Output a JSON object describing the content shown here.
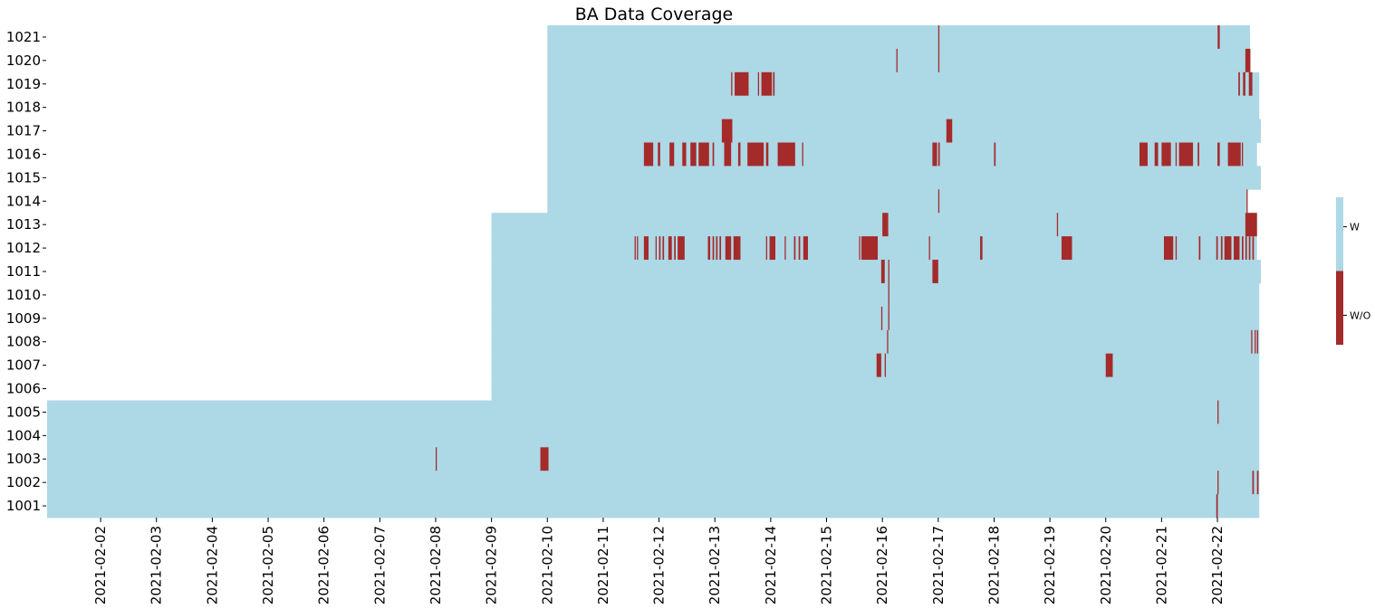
{
  "chart_data": {
    "type": "heatmap",
    "title": "BA Data Coverage",
    "colors": {
      "with": "#add8e6",
      "without": "#a52a2a",
      "background": "#ffffff"
    },
    "rows": [
      "1021",
      "1020",
      "1019",
      "1018",
      "1017",
      "1016",
      "1015",
      "1014",
      "1013",
      "1012",
      "1011",
      "1010",
      "1009",
      "1008",
      "1007",
      "1006",
      "1005",
      "1004",
      "1003",
      "1002",
      "1001"
    ],
    "x_ticks": [
      "2021-02-02",
      "2021-02-03",
      "2021-02-04",
      "2021-02-05",
      "2021-02-06",
      "2021-02-07",
      "2021-02-08",
      "2021-02-09",
      "2021-02-10",
      "2021-02-11",
      "2021-02-12",
      "2021-02-13",
      "2021-02-14",
      "2021-02-15",
      "2021-02-16",
      "2021-02-17",
      "2021-02-18",
      "2021-02-19",
      "2021-02-20",
      "2021-02-21",
      "2021-02-22"
    ],
    "x_range": [
      "2021-02-01T01:00",
      "2021-02-22T18:40"
    ],
    "series": [
      {
        "row": "1021",
        "start": "2021-02-10T00:00",
        "end": "2021-02-22T14:00",
        "gaps": [
          [
            "2021-02-17T00:00",
            "2021-02-17T00:30"
          ],
          [
            "2021-02-22T00:05",
            "2021-02-22T01:00"
          ]
        ]
      },
      {
        "row": "1020",
        "start": "2021-02-10T00:00",
        "end": "2021-02-22T14:10",
        "gaps": [
          [
            "2021-02-16T06:00",
            "2021-02-16T06:30"
          ],
          [
            "2021-02-17T00:00",
            "2021-02-17T00:30"
          ],
          [
            "2021-02-22T12:00",
            "2021-02-22T14:10"
          ]
        ]
      },
      {
        "row": "1019",
        "start": "2021-02-10T00:00",
        "end": "2021-02-22T18:00",
        "gaps": [
          [
            "2021-02-13T07:00",
            "2021-02-13T07:30"
          ],
          [
            "2021-02-13T08:30",
            "2021-02-13T14:30"
          ],
          [
            "2021-02-13T18:30",
            "2021-02-13T19:00"
          ],
          [
            "2021-02-13T20:00",
            "2021-02-14T00:30"
          ],
          [
            "2021-02-14T01:00",
            "2021-02-14T01:40"
          ],
          [
            "2021-02-22T09:00",
            "2021-02-22T09:40"
          ],
          [
            "2021-02-22T11:00",
            "2021-02-22T12:00"
          ],
          [
            "2021-02-22T13:30",
            "2021-02-22T15:00"
          ]
        ]
      },
      {
        "row": "1018",
        "start": "2021-02-10T00:00",
        "end": "2021-02-22T18:00",
        "gaps": []
      },
      {
        "row": "1017",
        "start": "2021-02-10T00:00",
        "end": "2021-02-22T18:40",
        "gaps": [
          [
            "2021-02-13T03:00",
            "2021-02-13T07:30"
          ],
          [
            "2021-02-17T03:30",
            "2021-02-17T06:00"
          ]
        ]
      },
      {
        "row": "1016",
        "start": "2021-02-10T00:00",
        "end": "2021-02-22T17:00",
        "gaps": [
          [
            "2021-02-11T17:30",
            "2021-02-11T21:30"
          ],
          [
            "2021-02-11T23:30",
            "2021-02-12T00:30"
          ],
          [
            "2021-02-12T04:30",
            "2021-02-12T06:30"
          ],
          [
            "2021-02-12T10:00",
            "2021-02-12T11:40"
          ],
          [
            "2021-02-12T13:30",
            "2021-02-12T16:00"
          ],
          [
            "2021-02-12T17:00",
            "2021-02-12T21:30"
          ],
          [
            "2021-02-12T23:00",
            "2021-02-12T23:40"
          ],
          [
            "2021-02-13T04:00",
            "2021-02-13T07:00"
          ],
          [
            "2021-02-13T10:00",
            "2021-02-13T11:00"
          ],
          [
            "2021-02-13T14:00",
            "2021-02-13T21:00"
          ],
          [
            "2021-02-13T22:00",
            "2021-02-13T23:00"
          ],
          [
            "2021-02-14T03:00",
            "2021-02-14T10:30"
          ],
          [
            "2021-02-14T13:30",
            "2021-02-14T14:00"
          ],
          [
            "2021-02-16T21:30",
            "2021-02-16T23:30"
          ],
          [
            "2021-02-17T00:00",
            "2021-02-17T00:40"
          ],
          [
            "2021-02-18T00:00",
            "2021-02-18T00:40"
          ],
          [
            "2021-02-20T14:30",
            "2021-02-20T18:00"
          ],
          [
            "2021-02-20T21:00",
            "2021-02-20T22:30"
          ],
          [
            "2021-02-21T00:00",
            "2021-02-21T04:00"
          ],
          [
            "2021-02-21T06:00",
            "2021-02-21T06:30"
          ],
          [
            "2021-02-21T07:30",
            "2021-02-21T13:30"
          ],
          [
            "2021-02-21T15:30",
            "2021-02-21T16:10"
          ],
          [
            "2021-02-22T00:00",
            "2021-02-22T01:00"
          ],
          [
            "2021-02-22T04:30",
            "2021-02-22T10:00"
          ],
          [
            "2021-02-22T10:30",
            "2021-02-22T11:00"
          ]
        ]
      },
      {
        "row": "1015",
        "start": "2021-02-10T00:00",
        "end": "2021-02-22T18:40",
        "gaps": []
      },
      {
        "row": "1014",
        "start": "2021-02-10T00:00",
        "end": "2021-02-22T12:30",
        "gaps": [
          [
            "2021-02-17T00:00",
            "2021-02-17T00:30"
          ],
          [
            "2021-02-22T12:30",
            "2021-02-22T13:00"
          ]
        ]
      },
      {
        "row": "1013",
        "start": "2021-02-09T00:00",
        "end": "2021-02-22T17:00",
        "gaps": [
          [
            "2021-02-16T00:00",
            "2021-02-16T02:30"
          ],
          [
            "2021-02-19T03:00",
            "2021-02-19T03:30"
          ],
          [
            "2021-02-22T12:00",
            "2021-02-22T17:00"
          ]
        ]
      },
      {
        "row": "1012",
        "start": "2021-02-09T00:00",
        "end": "2021-02-22T17:00",
        "gaps": [
          [
            "2021-02-11T13:30",
            "2021-02-11T14:00"
          ],
          [
            "2021-02-11T14:30",
            "2021-02-11T15:00"
          ],
          [
            "2021-02-11T17:30",
            "2021-02-11T19:30"
          ],
          [
            "2021-02-11T22:30",
            "2021-02-11T23:00"
          ],
          [
            "2021-02-12T00:00",
            "2021-02-12T00:40"
          ],
          [
            "2021-02-12T01:30",
            "2021-02-12T02:10"
          ],
          [
            "2021-02-12T04:00",
            "2021-02-12T05:30"
          ],
          [
            "2021-02-12T06:30",
            "2021-02-12T07:10"
          ],
          [
            "2021-02-12T08:00",
            "2021-02-12T11:00"
          ],
          [
            "2021-02-12T21:00",
            "2021-02-12T22:00"
          ],
          [
            "2021-02-12T23:00",
            "2021-02-12T23:40"
          ],
          [
            "2021-02-13T00:30",
            "2021-02-13T01:10"
          ],
          [
            "2021-02-13T02:00",
            "2021-02-13T02:40"
          ],
          [
            "2021-02-13T04:30",
            "2021-02-13T07:00"
          ],
          [
            "2021-02-13T08:00",
            "2021-02-13T11:00"
          ],
          [
            "2021-02-13T22:00",
            "2021-02-13T22:30"
          ],
          [
            "2021-02-13T23:30",
            "2021-02-14T02:00"
          ],
          [
            "2021-02-14T06:00",
            "2021-02-14T06:30"
          ],
          [
            "2021-02-14T10:00",
            "2021-02-14T10:40"
          ],
          [
            "2021-02-14T12:00",
            "2021-02-14T12:40"
          ],
          [
            "2021-02-14T14:00",
            "2021-02-14T16:00"
          ],
          [
            "2021-02-15T14:00",
            "2021-02-15T14:30"
          ],
          [
            "2021-02-15T15:00",
            "2021-02-15T22:00"
          ],
          [
            "2021-02-16T20:00",
            "2021-02-16T20:30"
          ],
          [
            "2021-02-17T18:00",
            "2021-02-17T19:00"
          ],
          [
            "2021-02-19T05:00",
            "2021-02-19T09:30"
          ],
          [
            "2021-02-21T01:00",
            "2021-02-21T05:00"
          ],
          [
            "2021-02-21T06:00",
            "2021-02-21T06:30"
          ],
          [
            "2021-02-21T16:00",
            "2021-02-21T16:40"
          ],
          [
            "2021-02-21T23:30",
            "2021-02-22T00:10"
          ],
          [
            "2021-02-22T01:30",
            "2021-02-22T02:10"
          ],
          [
            "2021-02-22T03:00",
            "2021-02-22T06:00"
          ],
          [
            "2021-02-22T07:00",
            "2021-02-22T09:30"
          ],
          [
            "2021-02-22T10:30",
            "2021-02-22T11:10"
          ],
          [
            "2021-02-22T12:00",
            "2021-02-22T12:40"
          ],
          [
            "2021-02-22T13:30",
            "2021-02-22T14:10"
          ],
          [
            "2021-02-22T15:00",
            "2021-02-22T15:40"
          ]
        ]
      },
      {
        "row": "1011",
        "start": "2021-02-09T00:00",
        "end": "2021-02-22T18:40",
        "gaps": [
          [
            "2021-02-15T23:30",
            "2021-02-16T01:00"
          ],
          [
            "2021-02-16T02:30",
            "2021-02-16T03:00"
          ],
          [
            "2021-02-16T21:30",
            "2021-02-16T24:00"
          ]
        ]
      },
      {
        "row": "1010",
        "start": "2021-02-09T00:00",
        "end": "2021-02-22T18:00",
        "gaps": [
          [
            "2021-02-16T02:30",
            "2021-02-16T03:00"
          ]
        ]
      },
      {
        "row": "1009",
        "start": "2021-02-09T00:00",
        "end": "2021-02-22T18:00",
        "gaps": [
          [
            "2021-02-15T23:30",
            "2021-02-16T00:00"
          ],
          [
            "2021-02-16T02:30",
            "2021-02-16T03:00"
          ]
        ]
      },
      {
        "row": "1008",
        "start": "2021-02-09T00:00",
        "end": "2021-02-22T18:00",
        "gaps": [
          [
            "2021-02-16T02:00",
            "2021-02-16T02:30"
          ],
          [
            "2021-02-22T14:30",
            "2021-02-22T15:00"
          ],
          [
            "2021-02-22T16:00",
            "2021-02-22T16:30"
          ],
          [
            "2021-02-22T17:00",
            "2021-02-22T17:30"
          ]
        ]
      },
      {
        "row": "1007",
        "start": "2021-02-09T00:00",
        "end": "2021-02-22T18:00",
        "gaps": [
          [
            "2021-02-15T21:30",
            "2021-02-15T23:30"
          ],
          [
            "2021-02-16T01:00",
            "2021-02-16T01:30"
          ],
          [
            "2021-02-20T00:00",
            "2021-02-20T03:00"
          ]
        ]
      },
      {
        "row": "1006",
        "start": "2021-02-09T00:00",
        "end": "2021-02-22T18:00",
        "gaps": []
      },
      {
        "row": "1005",
        "start": "2021-02-01T00:00",
        "end": "2021-02-22T18:00",
        "gaps": [
          [
            "2021-02-22T00:00",
            "2021-02-22T00:30"
          ]
        ]
      },
      {
        "row": "1004",
        "start": "2021-02-01T00:00",
        "end": "2021-02-22T18:00",
        "gaps": []
      },
      {
        "row": "1003",
        "start": "2021-02-01T00:00",
        "end": "2021-02-22T18:00",
        "gaps": [
          [
            "2021-02-08T00:00",
            "2021-02-08T00:30"
          ],
          [
            "2021-02-09T21:00",
            "2021-02-10T00:30"
          ]
        ]
      },
      {
        "row": "1002",
        "start": "2021-02-01T00:00",
        "end": "2021-02-22T18:00",
        "gaps": [
          [
            "2021-02-21T24:00",
            "2021-02-22T00:30"
          ],
          [
            "2021-02-22T15:00",
            "2021-02-22T15:40"
          ],
          [
            "2021-02-22T17:00",
            "2021-02-22T17:40"
          ]
        ]
      },
      {
        "row": "1001",
        "start": "2021-02-01T00:00",
        "end": "2021-02-22T18:00",
        "gaps": [
          [
            "2021-02-21T23:30",
            "2021-02-22T00:10"
          ]
        ]
      }
    ],
    "legend": {
      "labels": [
        "W",
        "W/O"
      ],
      "placement": "right"
    },
    "xlabel": "",
    "ylabel": ""
  }
}
